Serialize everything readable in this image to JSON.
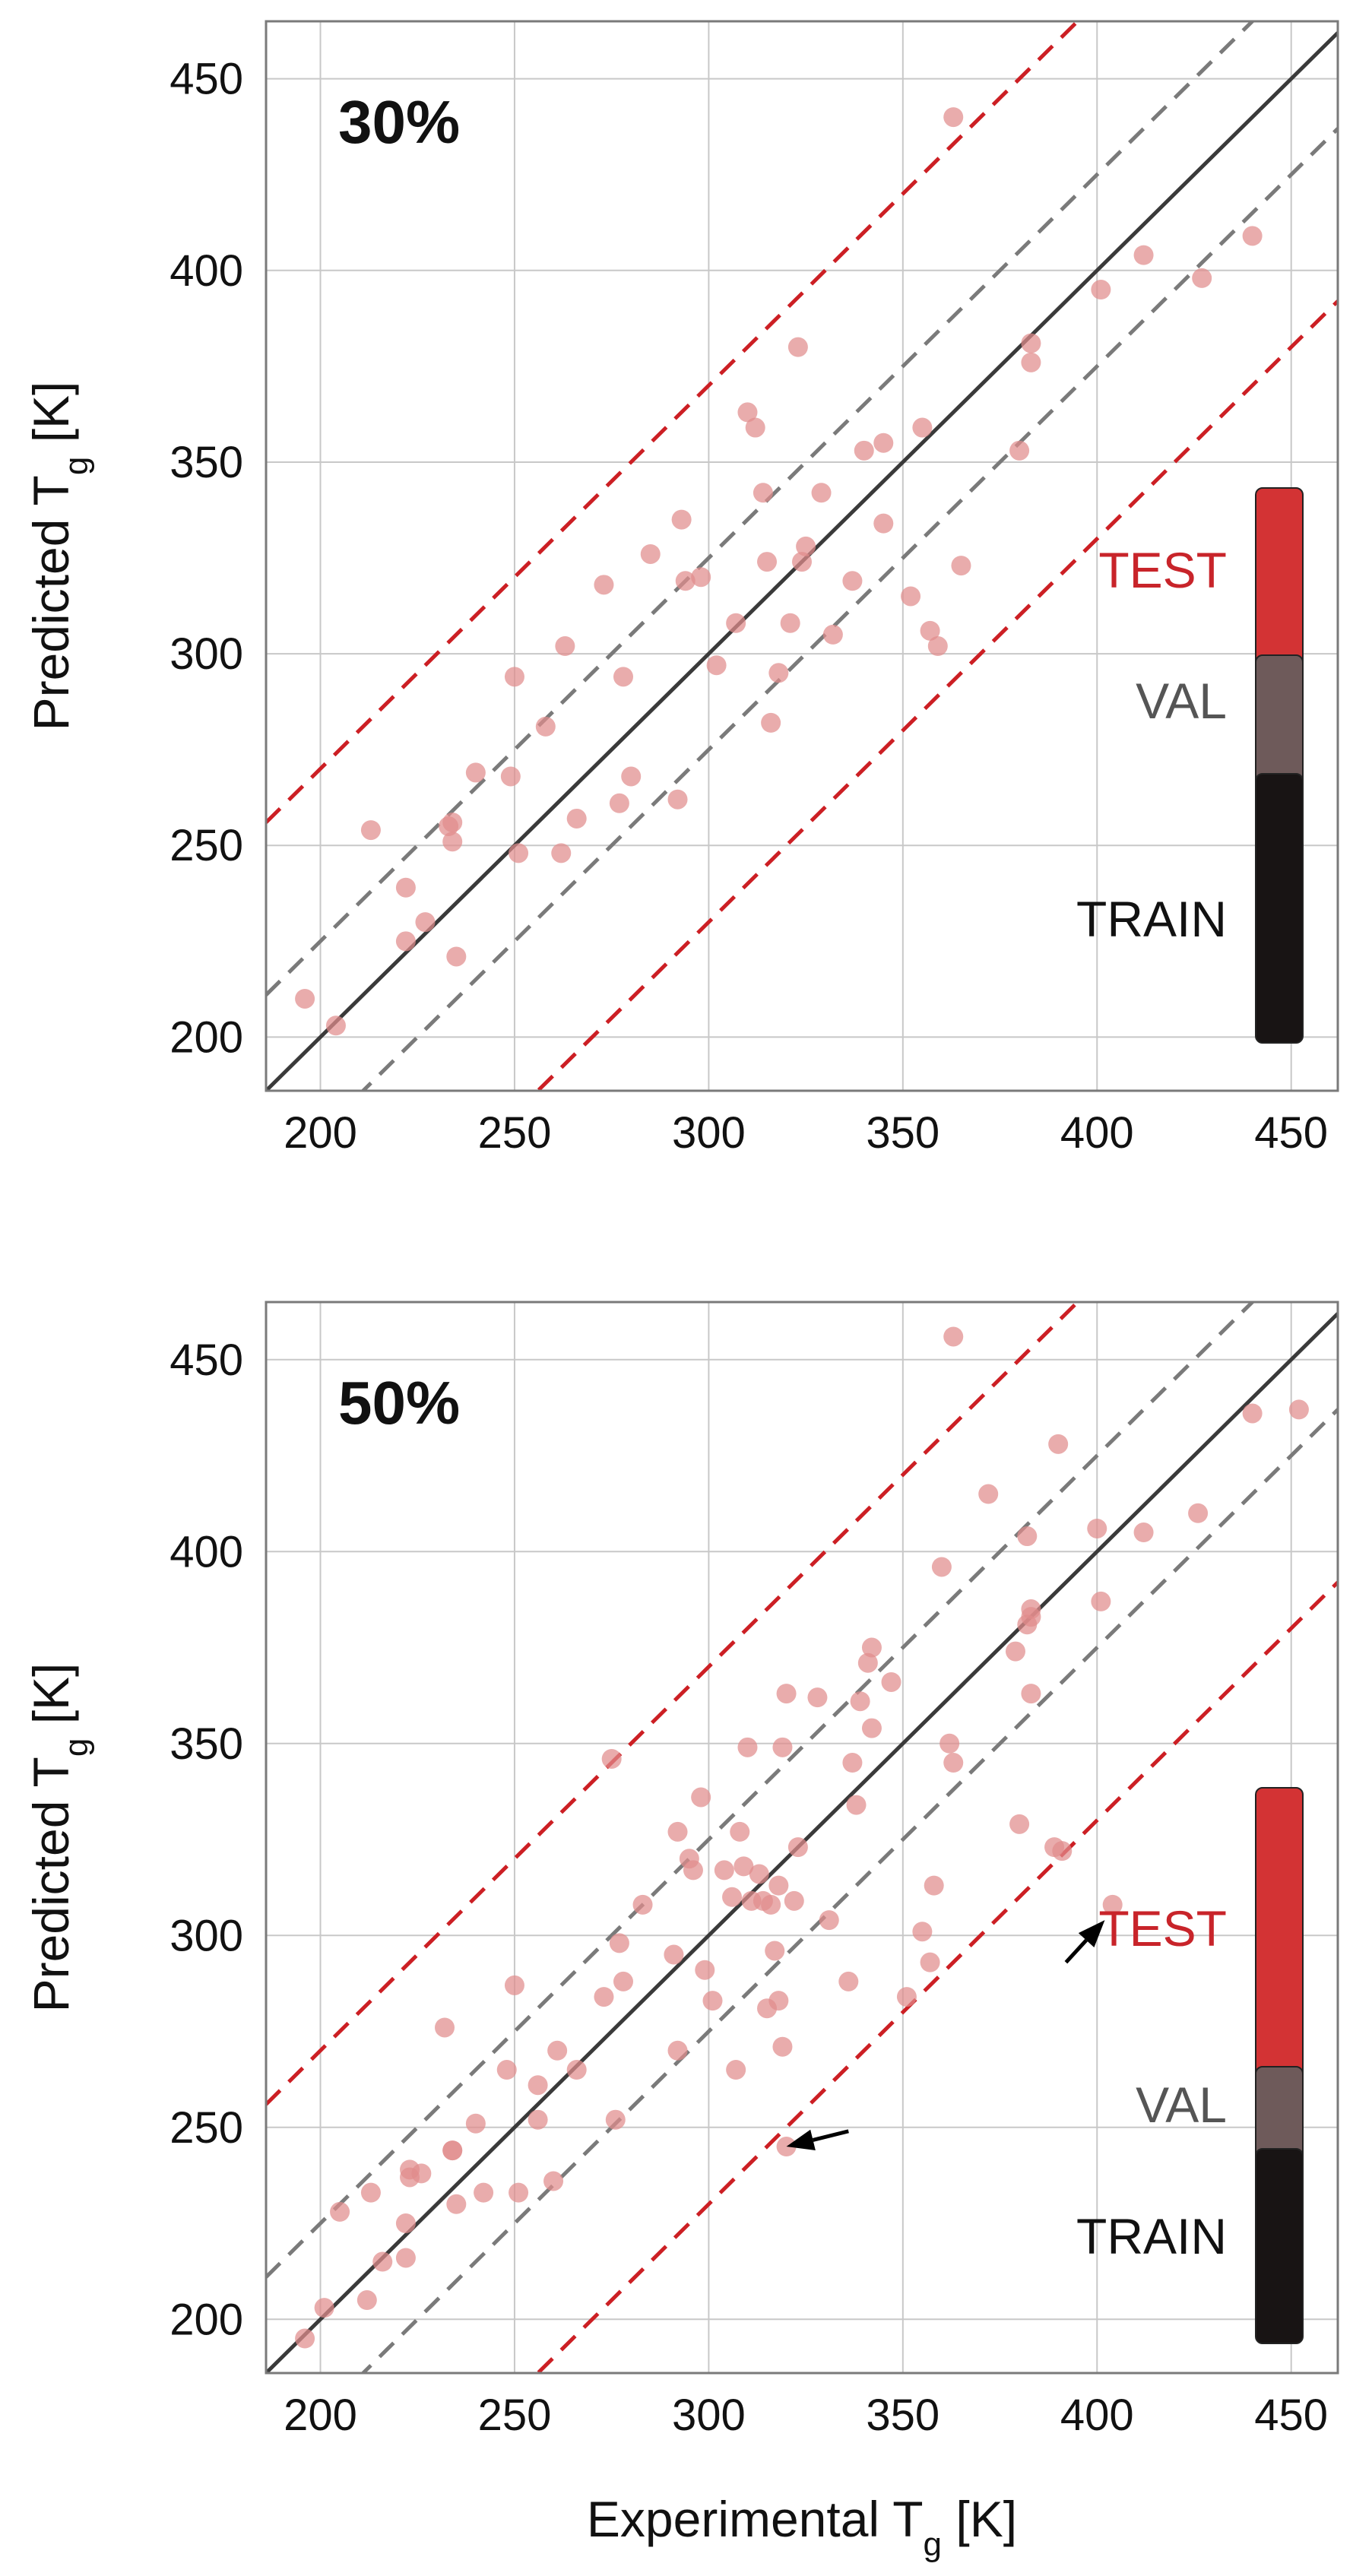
{
  "chart_data": [
    {
      "type": "scatter",
      "panel_label": "30%",
      "xlabel": "Experimental Tg [K]",
      "ylabel": "Predicted Tg [K]",
      "xlabel_parts": {
        "pre": "Experimental T",
        "sub": "g",
        "post": " [K]"
      },
      "ylabel_parts": {
        "pre": "Predicted T",
        "sub": "g",
        "post": " [K]"
      },
      "show_xlabel": false,
      "xlim": [
        186,
        462
      ],
      "ylim": [
        186,
        465
      ],
      "xticks": [
        200,
        250,
        300,
        350,
        400,
        450
      ],
      "yticks": [
        200,
        250,
        300,
        350,
        400,
        450
      ],
      "grid": true,
      "reference_lines": {
        "identity_offset": 0,
        "inner_offset": 25,
        "outer_offset": 70
      },
      "legend": {
        "entries": [
          "TEST",
          "VAL",
          "TRAIN"
        ],
        "colors": [
          "#d33334",
          "#6e5a5a",
          "#181414"
        ],
        "text_colors": [
          "#c8242a",
          "#555555",
          "#111111"
        ]
      },
      "point_color": "#e08c8c",
      "points": [
        [
          196,
          210
        ],
        [
          204,
          203
        ],
        [
          213,
          254
        ],
        [
          222,
          239
        ],
        [
          222,
          225
        ],
        [
          227,
          230
        ],
        [
          233,
          255
        ],
        [
          234,
          256
        ],
        [
          234,
          251
        ],
        [
          235,
          221
        ],
        [
          240,
          269
        ],
        [
          249,
          268
        ],
        [
          250,
          294
        ],
        [
          251,
          248
        ],
        [
          258,
          281
        ],
        [
          262,
          248
        ],
        [
          263,
          302
        ],
        [
          266,
          257
        ],
        [
          273,
          318
        ],
        [
          277,
          261
        ],
        [
          278,
          294
        ],
        [
          280,
          268
        ],
        [
          285,
          326
        ],
        [
          292,
          262
        ],
        [
          293,
          335
        ],
        [
          294,
          319
        ],
        [
          298,
          320
        ],
        [
          302,
          297
        ],
        [
          307,
          308
        ],
        [
          310,
          363
        ],
        [
          312,
          359
        ],
        [
          314,
          342
        ],
        [
          315,
          324
        ],
        [
          316,
          282
        ],
        [
          318,
          295
        ],
        [
          321,
          308
        ],
        [
          323,
          380
        ],
        [
          324,
          324
        ],
        [
          325,
          328
        ],
        [
          329,
          342
        ],
        [
          332,
          305
        ],
        [
          337,
          319
        ],
        [
          340,
          353
        ],
        [
          345,
          334
        ],
        [
          345,
          355
        ],
        [
          352,
          315
        ],
        [
          355,
          359
        ],
        [
          357,
          306
        ],
        [
          359,
          302
        ],
        [
          365,
          323
        ],
        [
          363,
          440
        ],
        [
          380,
          353
        ],
        [
          383,
          376
        ],
        [
          383,
          381
        ],
        [
          401,
          395
        ],
        [
          412,
          404
        ],
        [
          427,
          398
        ],
        [
          440,
          409
        ]
      ]
    },
    {
      "type": "scatter",
      "panel_label": "50%",
      "xlabel": "Experimental Tg [K]",
      "ylabel": "Predicted Tg [K]",
      "xlabel_parts": {
        "pre": "Experimental T",
        "sub": "g",
        "post": " [K]"
      },
      "ylabel_parts": {
        "pre": "Predicted T",
        "sub": "g",
        "post": " [K]"
      },
      "show_xlabel": true,
      "xlim": [
        186,
        462
      ],
      "ylim": [
        186,
        465
      ],
      "xticks": [
        200,
        250,
        300,
        350,
        400,
        450
      ],
      "yticks": [
        200,
        250,
        300,
        350,
        400,
        450
      ],
      "grid": true,
      "reference_lines": {
        "identity_offset": 0,
        "inner_offset": 25,
        "outer_offset": 70
      },
      "legend": {
        "entries": [
          "TEST",
          "VAL",
          "TRAIN"
        ],
        "colors": [
          "#d33334",
          "#6e5a5a",
          "#181414"
        ],
        "text_colors": [
          "#c8242a",
          "#555555",
          "#111111"
        ]
      },
      "point_color": "#e08c8c",
      "points": [
        [
          196,
          195
        ],
        [
          201,
          203
        ],
        [
          205,
          228
        ],
        [
          212,
          205
        ],
        [
          213,
          233
        ],
        [
          216,
          215
        ],
        [
          222,
          225
        ],
        [
          222,
          216
        ],
        [
          223,
          237
        ],
        [
          223,
          239
        ],
        [
          226,
          238
        ],
        [
          232,
          276
        ],
        [
          234,
          244
        ],
        [
          234,
          244
        ],
        [
          235,
          230
        ],
        [
          240,
          251
        ],
        [
          242,
          233
        ],
        [
          248,
          265
        ],
        [
          250,
          287
        ],
        [
          251,
          233
        ],
        [
          256,
          252
        ],
        [
          256,
          261
        ],
        [
          260,
          236
        ],
        [
          261,
          270
        ],
        [
          266,
          265
        ],
        [
          273,
          284
        ],
        [
          275,
          346
        ],
        [
          276,
          252
        ],
        [
          277,
          298
        ],
        [
          278,
          288
        ],
        [
          283,
          308
        ],
        [
          291,
          295
        ],
        [
          292,
          327
        ],
        [
          292,
          270
        ],
        [
          295,
          320
        ],
        [
          296,
          317
        ],
        [
          298,
          336
        ],
        [
          299,
          291
        ],
        [
          301,
          283
        ],
        [
          304,
          317
        ],
        [
          306,
          310
        ],
        [
          307,
          265
        ],
        [
          308,
          327
        ],
        [
          309,
          318
        ],
        [
          310,
          349
        ],
        [
          311,
          309
        ],
        [
          313,
          316
        ],
        [
          314,
          309
        ],
        [
          315,
          281
        ],
        [
          316,
          308
        ],
        [
          317,
          296
        ],
        [
          318,
          313
        ],
        [
          318,
          283
        ],
        [
          319,
          349
        ],
        [
          319,
          271
        ],
        [
          320,
          245
        ],
        [
          320,
          363
        ],
        [
          322,
          309
        ],
        [
          323,
          323
        ],
        [
          328,
          362
        ],
        [
          331,
          304
        ],
        [
          336,
          288
        ],
        [
          337,
          345
        ],
        [
          338,
          334
        ],
        [
          339,
          361
        ],
        [
          341,
          371
        ],
        [
          342,
          375
        ],
        [
          342,
          354
        ],
        [
          347,
          366
        ],
        [
          351,
          284
        ],
        [
          355,
          301
        ],
        [
          357,
          293
        ],
        [
          358,
          313
        ],
        [
          360,
          396
        ],
        [
          362,
          350
        ],
        [
          363,
          345
        ],
        [
          363,
          456
        ],
        [
          372,
          415
        ],
        [
          379,
          374
        ],
        [
          380,
          329
        ],
        [
          382,
          381
        ],
        [
          382,
          404
        ],
        [
          383,
          363
        ],
        [
          383,
          383
        ],
        [
          383,
          385
        ],
        [
          389,
          323
        ],
        [
          390,
          428
        ],
        [
          391,
          322
        ],
        [
          400,
          406
        ],
        [
          401,
          387
        ],
        [
          404,
          308
        ],
        [
          412,
          405
        ],
        [
          426,
          410
        ],
        [
          440,
          436
        ],
        [
          452,
          437
        ]
      ],
      "annotations": [
        {
          "type": "arrow",
          "target": [
            320,
            245
          ],
          "from": [
            336,
            249
          ]
        },
        {
          "type": "arrow",
          "target": [
            402,
            304
          ],
          "from": [
            392,
            293
          ]
        }
      ]
    }
  ]
}
